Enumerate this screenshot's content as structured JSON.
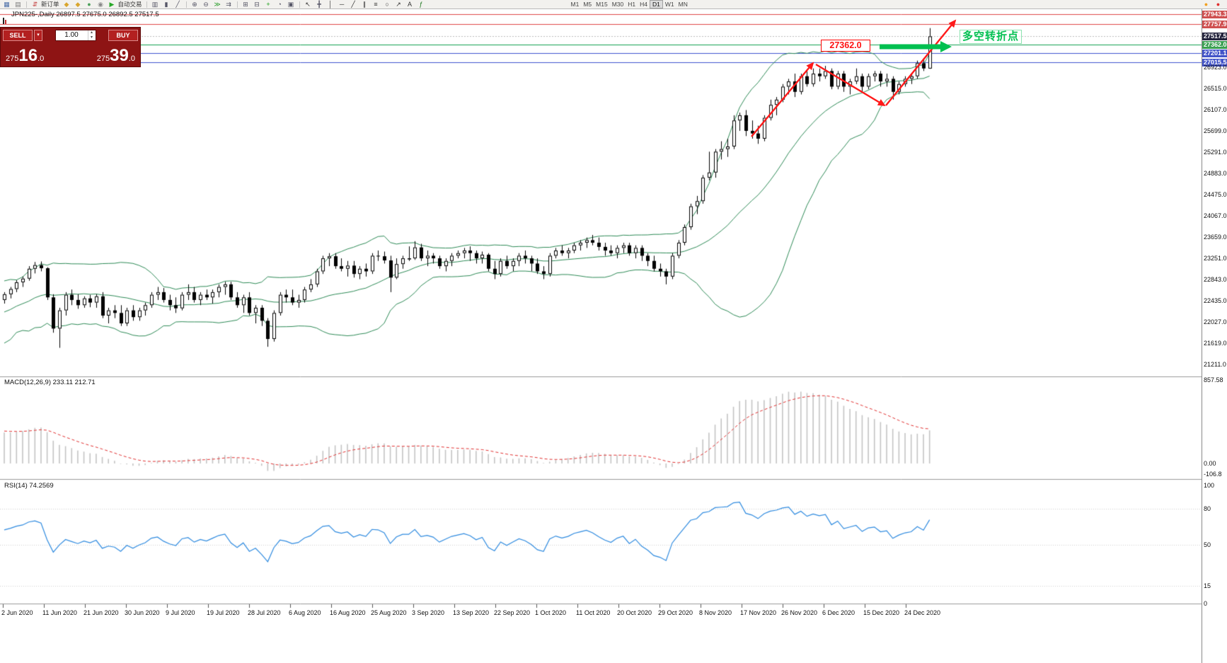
{
  "toolbar": {
    "items": [
      {
        "name": "new-chart",
        "glyph": "▦",
        "color": "#4a6da7"
      },
      {
        "name": "profiles",
        "glyph": "▤",
        "color": "#7a7a7a"
      },
      {
        "sep": true
      },
      {
        "name": "new-order",
        "glyph": "⇵",
        "color": "#c03333",
        "label": "新订单"
      },
      {
        "name": "market-watch",
        "glyph": "◆",
        "color": "#d9a62e"
      },
      {
        "name": "data-window",
        "glyph": "◆",
        "color": "#d9a62e"
      },
      {
        "name": "navigator",
        "glyph": "●",
        "color": "#4aa05a"
      },
      {
        "name": "terminal",
        "glyph": "◉",
        "color": "#888888"
      },
      {
        "name": "autotrading",
        "glyph": "▶",
        "color": "#28a828",
        "label": "自动交易"
      },
      {
        "sep": true
      },
      {
        "name": "chart-bars",
        "glyph": "▥",
        "color": "#555566"
      },
      {
        "name": "chart-candles",
        "glyph": "▮",
        "color": "#555566"
      },
      {
        "name": "chart-line",
        "glyph": "╱",
        "color": "#555566"
      },
      {
        "sep": true
      },
      {
        "name": "zoom-in",
        "glyph": "⊕",
        "color": "#555566"
      },
      {
        "name": "zoom-out",
        "glyph": "⊖",
        "color": "#555566"
      },
      {
        "name": "auto-scroll",
        "glyph": "≫",
        "color": "#2a9d2a"
      },
      {
        "name": "chart-shift",
        "glyph": "⇉",
        "color": "#555566"
      },
      {
        "sep": true
      },
      {
        "name": "tile-windows",
        "glyph": "⊞",
        "color": "#555566"
      },
      {
        "name": "cascade-windows",
        "glyph": "⊟",
        "color": "#555566"
      },
      {
        "name": "add-indicator",
        "glyph": "+",
        "color": "#18a018"
      },
      {
        "name": "period-settings",
        "glyph": "◔",
        "color": "#555566"
      },
      {
        "name": "template",
        "glyph": "▣",
        "color": "#555566"
      },
      {
        "sep": true
      },
      {
        "name": "cursor",
        "glyph": "↖",
        "color": "#333333"
      },
      {
        "name": "crosshair",
        "glyph": "╋",
        "color": "#555566"
      },
      {
        "name": "vertical-line-tool",
        "glyph": "│",
        "color": "#333333"
      },
      {
        "name": "horizontal-line-tool",
        "glyph": "─",
        "color": "#333333"
      },
      {
        "name": "trendline-tool",
        "glyph": "╱",
        "color": "#333333"
      },
      {
        "name": "channel-tool",
        "glyph": "∥",
        "color": "#333333"
      },
      {
        "name": "fibonacci-tool",
        "glyph": "≡",
        "color": "#333333"
      },
      {
        "name": "shapes-tool",
        "glyph": "○",
        "color": "#333333"
      },
      {
        "name": "arrow-tool",
        "glyph": "↗",
        "color": "#333333"
      },
      {
        "name": "text-tool",
        "glyph": "A",
        "color": "#333333"
      },
      {
        "name": "indicators",
        "glyph": "ƒ",
        "color": "#18731a"
      }
    ],
    "timeframes": [
      "M1",
      "M5",
      "M15",
      "M30",
      "H1",
      "H4",
      "D1",
      "W1",
      "MN"
    ],
    "active_timeframe": "D1",
    "right_icons": [
      {
        "name": "notifications",
        "glyph": "●",
        "color": "#f0a020"
      },
      {
        "name": "alert",
        "glyph": "●",
        "color": "#e03030"
      }
    ]
  },
  "trade_panel": {
    "sell_label": "SELL",
    "buy_label": "BUY",
    "volume": "1.00",
    "sell_price": "27516.0",
    "buy_price": "27539.0"
  },
  "chart": {
    "symbol_title": "JPN225-,Daily 26897.5 27675.0 26892.5 27517.5",
    "annotations": {
      "price_box": "27362.0",
      "turning_point": "多空转折点",
      "arrow_color": "#ff1a1a",
      "highlight_color": "#00c050"
    }
  },
  "price_axis": {
    "levels": [
      {
        "price": 27943.3,
        "label": "27943.3",
        "color": "#e04848",
        "bg": "#cf5050"
      },
      {
        "price": 27757.9,
        "label": "27757.9",
        "color": "#e04848",
        "bg": "#cf5050"
      },
      {
        "price": 27517.5,
        "label": "27517.5",
        "style": "dotted",
        "bg": "#23233c"
      },
      {
        "price": 27362.0,
        "label": "27362.0",
        "color": "#10a050",
        "bg": "#3ba052"
      },
      {
        "price": 27201.1,
        "label": "27201.1",
        "color": "#4054cf",
        "bg": "#4254c8"
      },
      {
        "price": 27015.5,
        "label": "27015.5",
        "color": "#4054cf",
        "bg": "#4254c8"
      }
    ],
    "ticks": [
      "26923.0",
      "26515.0",
      "26107.0",
      "25699.0",
      "25291.0",
      "24883.0",
      "24475.0",
      "24067.0",
      "23659.0",
      "23251.0",
      "22843.0",
      "22435.0",
      "22027.0",
      "21619.0",
      "21211.0"
    ]
  },
  "macd": {
    "label": "MACD(12,26,9) 233.11 212.71",
    "axis": [
      {
        "label": "857.58",
        "v": 857.58
      },
      {
        "label": "0.00",
        "v": 0
      },
      {
        "label": "-106.8",
        "v": -106.8
      }
    ]
  },
  "rsi": {
    "label": "RSI(14) 74.2569",
    "axis": [
      {
        "label": "100",
        "v": 100
      },
      {
        "label": "80",
        "v": 80
      },
      {
        "label": "50",
        "v": 50
      },
      {
        "label": "15",
        "v": 15
      },
      {
        "label": "0",
        "v": 0
      }
    ],
    "levels": [
      80,
      50,
      15
    ]
  },
  "time_axis": {
    "labels": [
      "2 Jun 2020",
      "11 Jun 2020",
      "21 Jun 2020",
      "30 Jun 2020",
      "9 Jul 2020",
      "19 Jul 2020",
      "28 Jul 2020",
      "6 Aug 2020",
      "16 Aug 2020",
      "25 Aug 2020",
      "3 Sep 2020",
      "13 Sep 2020",
      "22 Sep 2020",
      "1 Oct 2020",
      "11 Oct 2020",
      "20 Oct 2020",
      "29 Oct 2020",
      "8 Nov 2020",
      "17 Nov 2020",
      "26 Nov 2020",
      "6 Dec 2020",
      "15 Dec 2020",
      "24 Dec 2020"
    ]
  },
  "chart_data": {
    "type": "candlestick",
    "symbol": "JPN225-",
    "timeframe": "Daily",
    "current_bar": {
      "open": 26897.5,
      "high": 27675.0,
      "low": 26892.5,
      "close": 27517.5
    },
    "indicators": [
      "Bollinger Bands(20,2)",
      "MACD(12,26,9)",
      "RSI(14)"
    ],
    "y_axis_range": [
      20980,
      27960
    ],
    "warmup_closes": [
      20800,
      21000,
      20850,
      21150,
      21300,
      21100,
      21350,
      21200,
      21300,
      21150,
      21300,
      21700,
      21500,
      21900,
      22100,
      21800,
      22200,
      22000,
      22300,
      22100,
      22400,
      22200,
      22500,
      22300,
      22600,
      22400,
      22500,
      22350,
      22500,
      22450
    ],
    "candles": [
      [
        22450,
        22600,
        22380,
        22560
      ],
      [
        22560,
        22700,
        22480,
        22660
      ],
      [
        22660,
        22830,
        22600,
        22790
      ],
      [
        22790,
        22900,
        22700,
        22860
      ],
      [
        22860,
        23100,
        22820,
        23050
      ],
      [
        23050,
        23180,
        22960,
        23120
      ],
      [
        23120,
        23190,
        23000,
        23060
      ],
      [
        23060,
        23080,
        22450,
        22500
      ],
      [
        22500,
        22560,
        21820,
        21900
      ],
      [
        21900,
        22300,
        21530,
        22250
      ],
      [
        22250,
        22600,
        22150,
        22550
      ],
      [
        22550,
        22650,
        22350,
        22450
      ],
      [
        22450,
        22560,
        22280,
        22350
      ],
      [
        22350,
        22520,
        22300,
        22480
      ],
      [
        22480,
        22550,
        22310,
        22400
      ],
      [
        22400,
        22560,
        22300,
        22520
      ],
      [
        22520,
        22600,
        22100,
        22150
      ],
      [
        22150,
        22300,
        22000,
        22250
      ],
      [
        22250,
        22350,
        22100,
        22200
      ],
      [
        22200,
        22350,
        21950,
        22000
      ],
      [
        22000,
        22300,
        21950,
        22250
      ],
      [
        22250,
        22350,
        22050,
        22120
      ],
      [
        22120,
        22300,
        22050,
        22250
      ],
      [
        22250,
        22400,
        22150,
        22350
      ],
      [
        22350,
        22600,
        22300,
        22550
      ],
      [
        22550,
        22700,
        22450,
        22600
      ],
      [
        22600,
        22680,
        22400,
        22450
      ],
      [
        22450,
        22550,
        22250,
        22350
      ],
      [
        22350,
        22500,
        22200,
        22290
      ],
      [
        22290,
        22600,
        22250,
        22550
      ],
      [
        22550,
        22750,
        22450,
        22600
      ],
      [
        22600,
        22700,
        22400,
        22450
      ],
      [
        22450,
        22600,
        22350,
        22550
      ],
      [
        22550,
        22650,
        22450,
        22500
      ],
      [
        22500,
        22650,
        22380,
        22600
      ],
      [
        22600,
        22750,
        22500,
        22700
      ],
      [
        22700,
        22800,
        22550,
        22750
      ],
      [
        22750,
        22800,
        22450,
        22500
      ],
      [
        22500,
        22600,
        22300,
        22350
      ],
      [
        22350,
        22550,
        22200,
        22500
      ],
      [
        22500,
        22600,
        22150,
        22200
      ],
      [
        22200,
        22350,
        22000,
        22300
      ],
      [
        22300,
        22350,
        21950,
        22050
      ],
      [
        22050,
        22100,
        21550,
        21700
      ],
      [
        21700,
        22250,
        21650,
        22200
      ],
      [
        22200,
        22600,
        22150,
        22550
      ],
      [
        22550,
        22650,
        22400,
        22500
      ],
      [
        22500,
        22650,
        22350,
        22400
      ],
      [
        22400,
        22550,
        22300,
        22450
      ],
      [
        22450,
        22700,
        22400,
        22650
      ],
      [
        22650,
        22850,
        22600,
        22750
      ],
      [
        22750,
        23050,
        22700,
        23000
      ],
      [
        23000,
        23300,
        22950,
        23250
      ],
      [
        23250,
        23350,
        23100,
        23290
      ],
      [
        23290,
        23350,
        23050,
        23100
      ],
      [
        23100,
        23250,
        23000,
        23050
      ],
      [
        23050,
        23200,
        22900,
        23110
      ],
      [
        23110,
        23200,
        22880,
        22950
      ],
      [
        22950,
        23100,
        22850,
        23050
      ],
      [
        23050,
        23150,
        22900,
        23000
      ],
      [
        23000,
        23350,
        22950,
        23300
      ],
      [
        23300,
        23400,
        23200,
        23290
      ],
      [
        23290,
        23380,
        23150,
        23210
      ],
      [
        23210,
        23300,
        22600,
        22880
      ],
      [
        22880,
        23250,
        22850,
        23140
      ],
      [
        23140,
        23300,
        23050,
        23250
      ],
      [
        23250,
        23480,
        23200,
        23250
      ],
      [
        23250,
        23580,
        23220,
        23460
      ],
      [
        23460,
        23530,
        23200,
        23250
      ],
      [
        23250,
        23400,
        23100,
        23300
      ],
      [
        23300,
        23350,
        23150,
        23250
      ],
      [
        23250,
        23300,
        23050,
        23100
      ],
      [
        23100,
        23250,
        23000,
        23200
      ],
      [
        23200,
        23350,
        23100,
        23300
      ],
      [
        23300,
        23400,
        23250,
        23350
      ],
      [
        23350,
        23450,
        23250,
        23400
      ],
      [
        23400,
        23480,
        23200,
        23350
      ],
      [
        23350,
        23400,
        23150,
        23250
      ],
      [
        23250,
        23380,
        23150,
        23320
      ],
      [
        23320,
        23350,
        23000,
        23050
      ],
      [
        23050,
        23200,
        22850,
        22950
      ],
      [
        22950,
        23250,
        22900,
        23200
      ],
      [
        23200,
        23300,
        23050,
        23100
      ],
      [
        23100,
        23250,
        23000,
        23200
      ],
      [
        23200,
        23350,
        23100,
        23300
      ],
      [
        23300,
        23400,
        23150,
        23250
      ],
      [
        23250,
        23300,
        23000,
        23150
      ],
      [
        23150,
        23250,
        22950,
        23000
      ],
      [
        23000,
        23100,
        22850,
        22950
      ],
      [
        22950,
        23350,
        22900,
        23300
      ],
      [
        23300,
        23450,
        23250,
        23400
      ],
      [
        23400,
        23500,
        23300,
        23350
      ],
      [
        23350,
        23450,
        23250,
        23400
      ],
      [
        23400,
        23550,
        23350,
        23500
      ],
      [
        23500,
        23600,
        23400,
        23550
      ],
      [
        23550,
        23650,
        23450,
        23600
      ],
      [
        23600,
        23700,
        23500,
        23550
      ],
      [
        23550,
        23650,
        23400,
        23470
      ],
      [
        23470,
        23550,
        23300,
        23400
      ],
      [
        23400,
        23500,
        23300,
        23350
      ],
      [
        23350,
        23500,
        23250,
        23450
      ],
      [
        23450,
        23550,
        23350,
        23500
      ],
      [
        23500,
        23550,
        23300,
        23350
      ],
      [
        23350,
        23500,
        23250,
        23450
      ],
      [
        23450,
        23500,
        23200,
        23300
      ],
      [
        23300,
        23350,
        23100,
        23200
      ],
      [
        23200,
        23300,
        23000,
        23050
      ],
      [
        23050,
        23150,
        22900,
        23000
      ],
      [
        23000,
        23050,
        22750,
        22900
      ],
      [
        22900,
        23350,
        22850,
        23300
      ],
      [
        23300,
        23600,
        23250,
        23550
      ],
      [
        23550,
        23900,
        23500,
        23850
      ],
      [
        23850,
        24300,
        23800,
        24250
      ],
      [
        24250,
        24450,
        24100,
        24350
      ],
      [
        24350,
        24850,
        24300,
        24800
      ],
      [
        24800,
        25300,
        24750,
        24900
      ],
      [
        24900,
        25350,
        24800,
        25300
      ],
      [
        25300,
        25500,
        25150,
        25350
      ],
      [
        25350,
        25550,
        25200,
        25400
      ],
      [
        25400,
        26000,
        25350,
        25900
      ],
      [
        25900,
        26050,
        25700,
        26000
      ],
      [
        26000,
        26100,
        25600,
        25700
      ],
      [
        25700,
        25900,
        25550,
        25650
      ],
      [
        25650,
        25800,
        25450,
        25550
      ],
      [
        25550,
        26000,
        25500,
        25950
      ],
      [
        25950,
        26300,
        25900,
        26200
      ],
      [
        26200,
        26350,
        26000,
        26300
      ],
      [
        26300,
        26600,
        26250,
        26550
      ],
      [
        26550,
        26700,
        26400,
        26650
      ],
      [
        26650,
        26800,
        26350,
        26450
      ],
      [
        26450,
        26800,
        26400,
        26750
      ],
      [
        26750,
        26850,
        26550,
        26600
      ],
      [
        26600,
        26900,
        26550,
        26800
      ],
      [
        26800,
        26900,
        26650,
        26750
      ],
      [
        26750,
        26950,
        26700,
        26850
      ],
      [
        26850,
        26900,
        26500,
        26550
      ],
      [
        26550,
        26850,
        26500,
        26800
      ],
      [
        26800,
        26850,
        26450,
        26550
      ],
      [
        26550,
        26700,
        26400,
        26650
      ],
      [
        26650,
        26900,
        26600,
        26750
      ],
      [
        26750,
        26800,
        26450,
        26550
      ],
      [
        26550,
        26800,
        26500,
        26750
      ],
      [
        26750,
        26850,
        26650,
        26800
      ],
      [
        26800,
        26850,
        26550,
        26650
      ],
      [
        26650,
        26800,
        26550,
        26700
      ],
      [
        26700,
        26750,
        26300,
        26450
      ],
      [
        26450,
        26650,
        26400,
        26600
      ],
      [
        26600,
        26750,
        26550,
        26700
      ],
      [
        26700,
        26800,
        26600,
        26750
      ],
      [
        26750,
        27050,
        26700,
        27000
      ],
      [
        27000,
        27100,
        26850,
        26900
      ],
      [
        26897.5,
        27675.0,
        26892.5,
        27517.5
      ]
    ]
  }
}
